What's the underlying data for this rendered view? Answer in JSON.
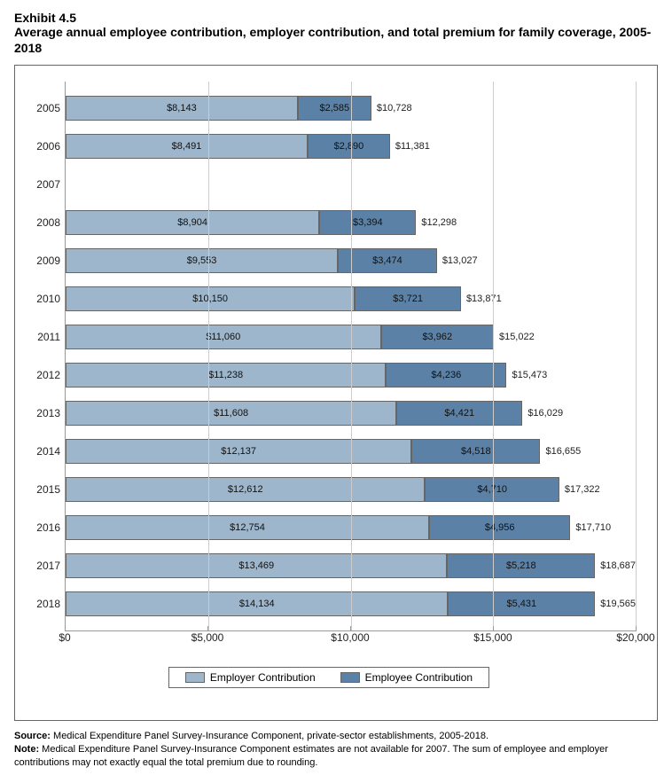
{
  "header": {
    "exhibit": "Exhibit 4.5",
    "title": "Average annual employee contribution, employer contribution, and total premium for family coverage, 2005-2018"
  },
  "chart": {
    "type": "stacked-horizontal-bar",
    "x_axis": {
      "min": 0,
      "max": 20000,
      "ticks": [
        0,
        5000,
        10000,
        15000,
        20000
      ],
      "tick_labels": [
        "$0",
        "$5,000",
        "$10,000",
        "$15,000",
        "$20,000"
      ]
    },
    "series": [
      {
        "key": "employer",
        "label": "Employer Contribution",
        "color": "#9db6cc"
      },
      {
        "key": "employee",
        "label": "Employee Contribution",
        "color": "#5b82a6"
      }
    ],
    "bar_border_color": "#666666",
    "grid_color": "#cccccc",
    "background_color": "#ffffff",
    "label_fontsize": 12,
    "value_fontsize": 11,
    "rows": [
      {
        "year": "2005",
        "employer": 8143,
        "employee": 2585,
        "total": 10728,
        "employer_label": "$8,143",
        "employee_label": "$2,585",
        "total_label": "$10,728"
      },
      {
        "year": "2006",
        "employer": 8491,
        "employee": 2890,
        "total": 11381,
        "employer_label": "$8,491",
        "employee_label": "$2,890",
        "total_label": "$11,381"
      },
      {
        "year": "2007",
        "employer": null,
        "employee": null,
        "total": null,
        "employer_label": "",
        "employee_label": "",
        "total_label": ""
      },
      {
        "year": "2008",
        "employer": 8904,
        "employee": 3394,
        "total": 12298,
        "employer_label": "$8,904",
        "employee_label": "$3,394",
        "total_label": "$12,298"
      },
      {
        "year": "2009",
        "employer": 9553,
        "employee": 3474,
        "total": 13027,
        "employer_label": "$9,553",
        "employee_label": "$3,474",
        "total_label": "$13,027"
      },
      {
        "year": "2010",
        "employer": 10150,
        "employee": 3721,
        "total": 13871,
        "employer_label": "$10,150",
        "employee_label": "$3,721",
        "total_label": "$13,871"
      },
      {
        "year": "2011",
        "employer": 11060,
        "employee": 3962,
        "total": 15022,
        "employer_label": "$11,060",
        "employee_label": "$3,962",
        "total_label": "$15,022"
      },
      {
        "year": "2012",
        "employer": 11238,
        "employee": 4236,
        "total": 15473,
        "employer_label": "$11,238",
        "employee_label": "$4,236",
        "total_label": "$15,473"
      },
      {
        "year": "2013",
        "employer": 11608,
        "employee": 4421,
        "total": 16029,
        "employer_label": "$11,608",
        "employee_label": "$4,421",
        "total_label": "$16,029"
      },
      {
        "year": "2014",
        "employer": 12137,
        "employee": 4518,
        "total": 16655,
        "employer_label": "$12,137",
        "employee_label": "$4,518",
        "total_label": "$16,655"
      },
      {
        "year": "2015",
        "employer": 12612,
        "employee": 4710,
        "total": 17322,
        "employer_label": "$12,612",
        "employee_label": "$4,710",
        "total_label": "$17,322"
      },
      {
        "year": "2016",
        "employer": 12754,
        "employee": 4956,
        "total": 17710,
        "employer_label": "$12,754",
        "employee_label": "$4,956",
        "total_label": "$17,710"
      },
      {
        "year": "2017",
        "employer": 13469,
        "employee": 5218,
        "total": 18687,
        "employer_label": "$13,469",
        "employee_label": "$5,218",
        "total_label": "$18,687"
      },
      {
        "year": "2018",
        "employer": 14134,
        "employee": 5431,
        "total": 19565,
        "employer_label": "$14,134",
        "employee_label": "$5,431",
        "total_label": "$19,565"
      }
    ]
  },
  "footnotes": {
    "source_label": "Source:",
    "source_text": " Medical Expenditure Panel Survey-Insurance Component, private-sector establishments, 2005-2018.",
    "note_label": "Note:",
    "note_text": " Medical Expenditure Panel Survey-Insurance Component estimates are not available for 2007. The sum of employee and employer contributions may not exactly equal the total premium due to rounding."
  }
}
